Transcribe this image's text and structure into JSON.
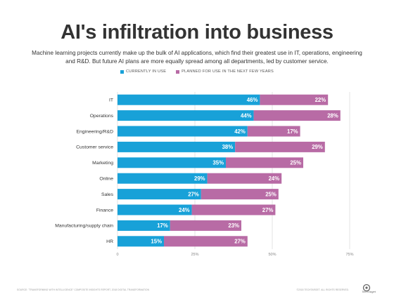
{
  "title": "AI's infiltration into business",
  "subtitle": "Machine learning projects currently make up the bulk of AI applications, which find their greatest use in IT, operations, engineering and R&D. But future AI plans are more equally spread among all departments, led by customer service.",
  "legend": {
    "current": "CURRENTLY IN USE",
    "planned": "PLANNED FOR USE IN THE NEXT FEW YEARS"
  },
  "colors": {
    "current": "#18a1d8",
    "planned": "#b86ba5",
    "grid": "#e3e3e3"
  },
  "chart_data": {
    "type": "bar",
    "orientation": "horizontal",
    "stacked": true,
    "categories": [
      "IT",
      "Operations",
      "Engineering/R&D",
      "Customer service",
      "Marketing",
      "Online",
      "Sales",
      "Finance",
      "Manufacturing/supply chain",
      "HR"
    ],
    "series": [
      {
        "name": "CURRENTLY IN USE",
        "values": [
          46,
          44,
          42,
          38,
          35,
          29,
          27,
          24,
          17,
          15
        ]
      },
      {
        "name": "PLANNED FOR USE IN THE NEXT FEW YEARS",
        "values": [
          22,
          28,
          17,
          29,
          25,
          24,
          25,
          27,
          23,
          27
        ]
      }
    ],
    "xlim": [
      0,
      75
    ],
    "x_ticks": [
      "0",
      "25%",
      "50%",
      "75%"
    ],
    "value_suffix": "%",
    "grid": true
  },
  "footer": {
    "source": "SOURCE: \"TRANSFORMING WITH INTELLIGENCE\" COMPOSITE INSIGHTS REPORT, 2018 DIGITAL TRANSFORMATION",
    "credit": "©2018 TECHTARGET. ALL RIGHTS RESERVED.",
    "logo": "TechTarget"
  }
}
